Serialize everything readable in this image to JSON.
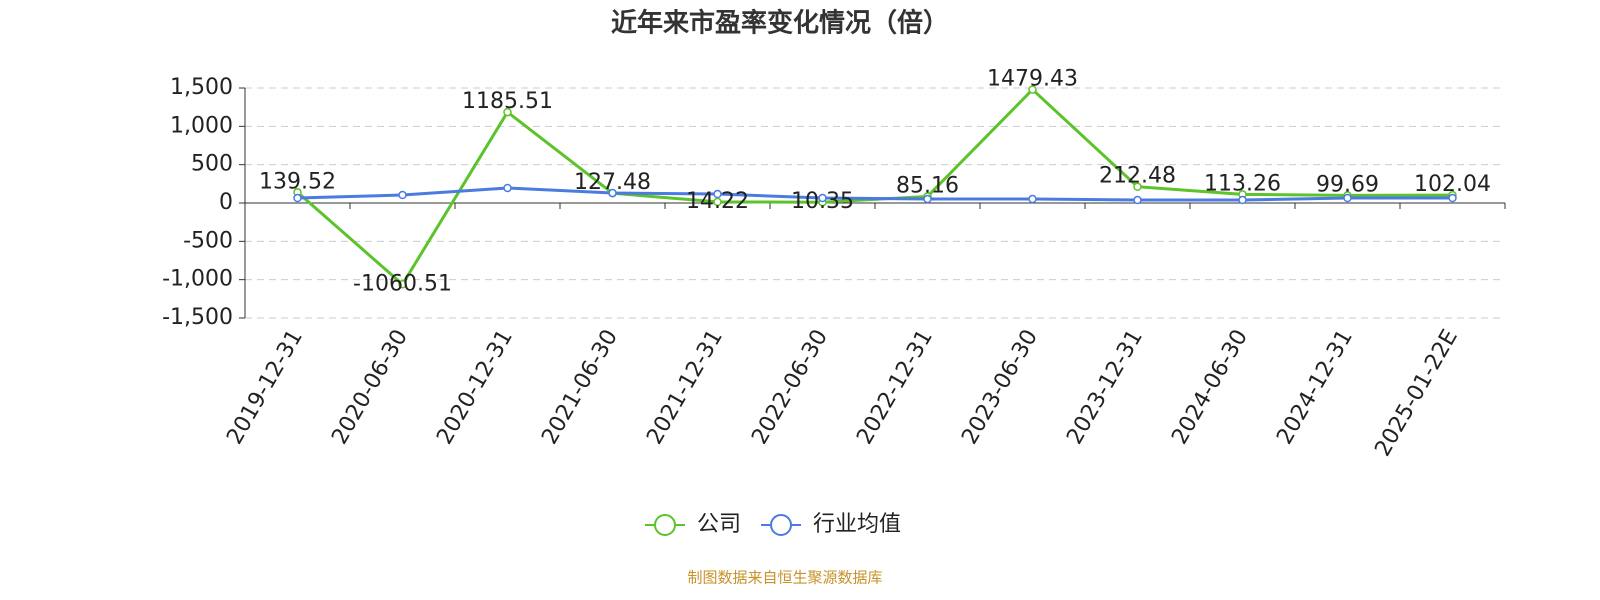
{
  "chart_data": {
    "type": "line",
    "title": "近年来市盈率变化情况（倍）",
    "categories": [
      "2019-12-31",
      "2020-06-30",
      "2020-12-31",
      "2021-06-30",
      "2021-12-31",
      "2022-06-30",
      "2022-12-31",
      "2023-06-30",
      "2023-12-31",
      "2024-06-30",
      "2024-12-31",
      "2025-01-22E"
    ],
    "series": [
      {
        "name": "公司",
        "color": "#5cc32a",
        "values": [
          139.52,
          -1060.51,
          1185.51,
          127.48,
          14.22,
          10.35,
          85.16,
          1479.43,
          212.48,
          113.26,
          99.69,
          102.04
        ]
      },
      {
        "name": "行业均值",
        "color": "#4b7be0",
        "values": [
          65,
          104,
          196,
          130,
          117,
          65,
          52,
          52,
          39,
          39,
          65,
          65
        ]
      }
    ],
    "ylim": [
      -1500,
      1500
    ],
    "yticks": [
      {
        "value": 1500,
        "label": "1,500"
      },
      {
        "value": 1000,
        "label": "1,000"
      },
      500,
      0,
      -500,
      {
        "value": -1000,
        "label": "-1,000"
      },
      {
        "value": -1500,
        "label": "-1,500"
      }
    ],
    "grid": true,
    "legend": "bottom",
    "source": "制图数据来自恒生聚源数据库"
  }
}
